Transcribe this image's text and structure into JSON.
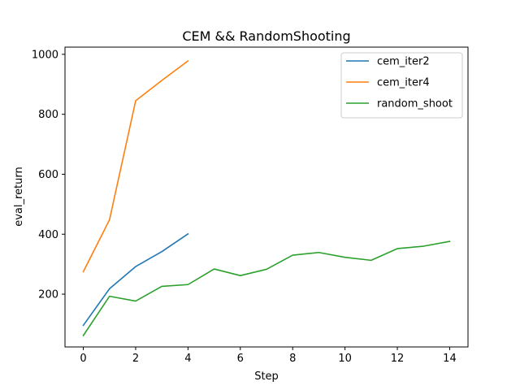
{
  "chart_data": {
    "type": "line",
    "title": "CEM && RandomShooting",
    "xlabel": "Step",
    "ylabel": "eval_return",
    "xlim": [
      -0.7,
      14.7
    ],
    "ylim": [
      24,
      1024
    ],
    "xticks": [
      0,
      2,
      4,
      6,
      8,
      10,
      12,
      14
    ],
    "yticks": [
      200,
      400,
      600,
      800,
      1000
    ],
    "grid": false,
    "legend_position": "top-right",
    "series": [
      {
        "name": "cem_iter2",
        "color": "#1f77b4",
        "x": [
          0,
          1,
          2,
          3,
          4
        ],
        "y": [
          96,
          218,
          292,
          342,
          401
        ]
      },
      {
        "name": "cem_iter4",
        "color": "#ff7f0e",
        "x": [
          0,
          1,
          2,
          3,
          4
        ],
        "y": [
          275,
          448,
          845,
          913,
          978
        ]
      },
      {
        "name": "random_shoot",
        "color": "#2ca02c",
        "x": [
          0,
          1,
          2,
          3,
          4,
          5,
          6,
          7,
          8,
          9,
          10,
          11,
          12,
          13,
          14
        ],
        "y": [
          62,
          193,
          177,
          226,
          232,
          284,
          262,
          283,
          330,
          339,
          323,
          313,
          352,
          360,
          376
        ]
      }
    ]
  }
}
